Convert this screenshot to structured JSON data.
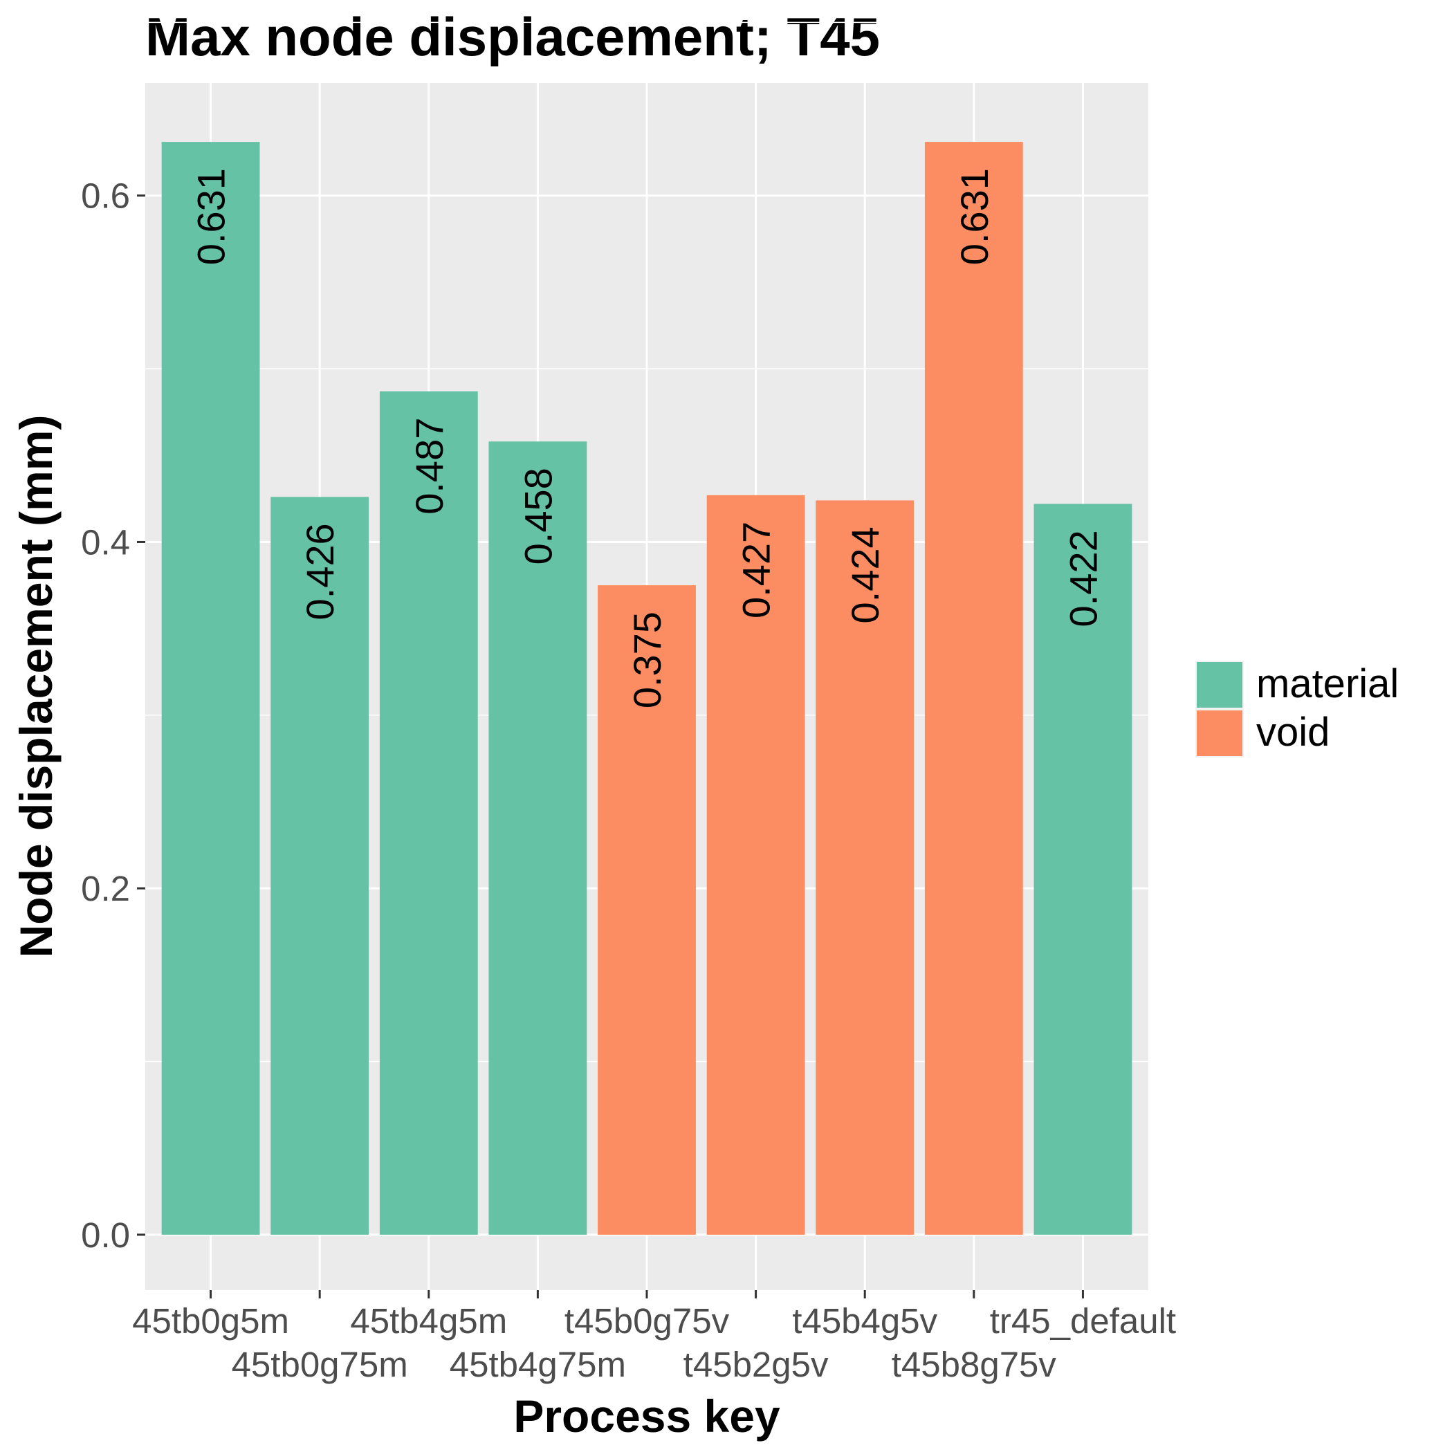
{
  "chart_data": {
    "type": "bar",
    "title": "Max node displacement; T45",
    "xlabel": "Process key",
    "ylabel": "Node displacement (mm)",
    "ylim": [
      -0.032,
      0.665
    ],
    "yticks": [
      0.0,
      0.2,
      0.4,
      0.6
    ],
    "ytick_labels": [
      "0.0",
      "0.2",
      "0.4",
      "0.6"
    ],
    "grid": true,
    "legend_position": "right",
    "categories": [
      "45tb0g5m",
      "45tb0g75m",
      "45tb4g5m",
      "45tb4g75m",
      "t45b0g75v",
      "t45b2g5v",
      "t45b4g5v",
      "t45b8g75v",
      "tr45_default"
    ],
    "values": [
      0.631,
      0.426,
      0.487,
      0.458,
      0.375,
      0.427,
      0.424,
      0.631,
      0.422
    ],
    "value_labels": [
      "0.631",
      "0.426",
      "0.487",
      "0.458",
      "0.375",
      "0.427",
      "0.424",
      "0.631",
      "0.422"
    ],
    "groups": [
      "material",
      "material",
      "material",
      "material",
      "void",
      "void",
      "void",
      "void",
      "material"
    ],
    "legend": [
      {
        "name": "material",
        "color": "#66c2a5"
      },
      {
        "name": "void",
        "color": "#fc8d62"
      }
    ]
  },
  "colors": {
    "panel_background": "#ebebeb",
    "grid_line": "#ffffff",
    "tick_text": "#4d4d4d"
  }
}
